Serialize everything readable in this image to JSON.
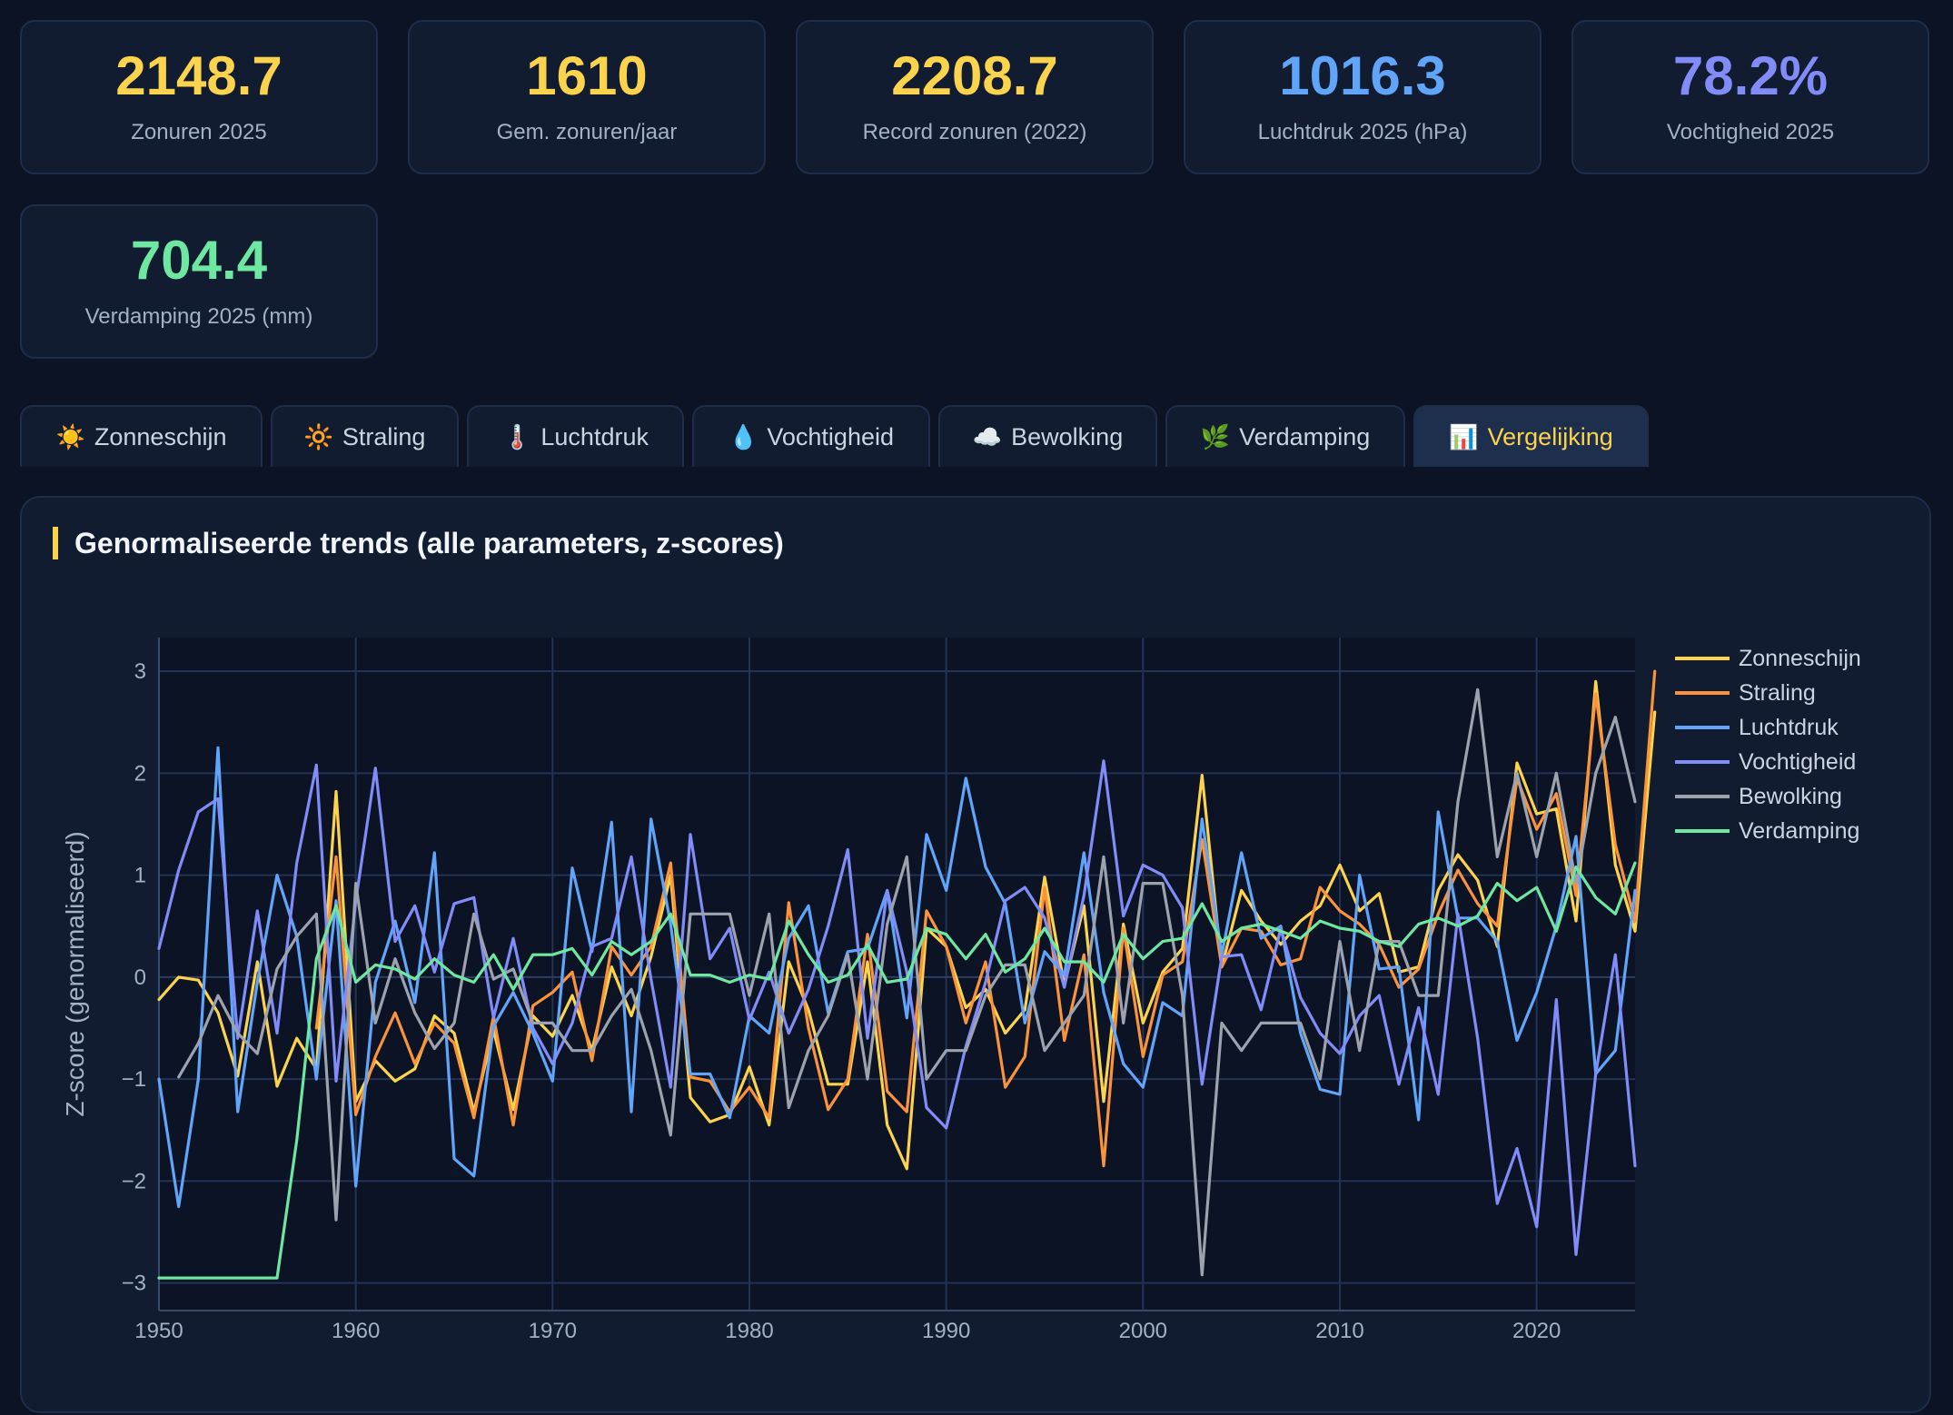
{
  "stats": [
    {
      "value": "2148.7",
      "label": "Zonuren 2025",
      "color": "#fcd34d"
    },
    {
      "value": "1610",
      "label": "Gem. zonuren/jaar",
      "color": "#fcd34d"
    },
    {
      "value": "2208.7",
      "label": "Record zonuren (2022)",
      "color": "#fcd34d"
    },
    {
      "value": "1016.3",
      "label": "Luchtdruk 2025 (hPa)",
      "color": "#60a5fa"
    },
    {
      "value": "78.2%",
      "label": "Vochtigheid 2025",
      "color": "#818cf8"
    },
    {
      "value": "704.4",
      "label": "Verdamping 2025 (mm)",
      "color": "#6ee7a0"
    }
  ],
  "tabs": [
    {
      "icon": "☀️",
      "label": "Zonneschijn",
      "icon_name": "sun-icon"
    },
    {
      "icon": "🔆",
      "label": "Straling",
      "icon_name": "radiation-icon"
    },
    {
      "icon": "🌡️",
      "label": "Luchtdruk",
      "icon_name": "thermometer-icon"
    },
    {
      "icon": "💧",
      "label": "Vochtigheid",
      "icon_name": "droplet-icon"
    },
    {
      "icon": "☁️",
      "label": "Bewolking",
      "icon_name": "cloud-icon"
    },
    {
      "icon": "🌿",
      "label": "Verdamping",
      "icon_name": "leaf-icon"
    },
    {
      "icon": "📊",
      "label": "Vergelijking",
      "icon_name": "bar-chart-icon",
      "active": true
    }
  ],
  "panel": {
    "title": "Genormaliseerde trends (alle parameters, z-scores)"
  },
  "chart_data": {
    "type": "line",
    "title": "",
    "xlabel": "",
    "ylabel": "Z-score (genormaliseerd)",
    "xlim": [
      1950,
      2025
    ],
    "ylim": [
      -3.27,
      3.33
    ],
    "xticks": [
      1950,
      1960,
      1970,
      1980,
      1990,
      2000,
      2010,
      2020
    ],
    "yticks": [
      3,
      2,
      1,
      0,
      -1,
      -2,
      -3
    ],
    "ytick_labels": [
      "3",
      "2",
      "1",
      "0",
      "−1",
      "−2",
      "−3"
    ],
    "grid": true,
    "legend": "right",
    "series": [
      {
        "name": "Zonneschijn",
        "color": "#fcd34d",
        "x0": 1950,
        "values": [
          -0.22,
          0.0,
          -0.03,
          -0.35,
          -0.97,
          0.15,
          -1.07,
          -0.6,
          -0.9,
          1.82,
          -1.22,
          -0.82,
          -1.02,
          -0.9,
          -0.38,
          -0.55,
          -1.32,
          -0.52,
          -1.3,
          -0.38,
          -0.58,
          -0.18,
          -0.72,
          0.1,
          -0.38,
          0.2,
          1.0,
          -1.18,
          -1.42,
          -1.35,
          -0.88,
          -1.45,
          0.15,
          -0.32,
          -1.05,
          -1.05,
          0.15,
          -1.45,
          -1.88,
          0.48,
          0.3,
          -0.3,
          -0.12,
          -0.55,
          -0.32,
          0.98,
          -0.08,
          0.7,
          -1.22,
          0.52,
          -0.45,
          0.05,
          0.28,
          1.98,
          0.1,
          0.85,
          0.55,
          0.32,
          0.55,
          0.7,
          1.1,
          0.65,
          0.82,
          0.05,
          0.1,
          0.85,
          1.2,
          0.95,
          0.3,
          2.1,
          1.6,
          1.65,
          0.55,
          2.9,
          1.1,
          0.45,
          2.6
        ]
      },
      {
        "name": "Straling",
        "color": "#fb923c",
        "x0": 1950,
        "values": [
          null,
          null,
          null,
          null,
          null,
          null,
          null,
          null,
          -0.5,
          1.18,
          -1.35,
          -0.78,
          -0.35,
          -0.85,
          -0.45,
          -0.65,
          -1.38,
          -0.38,
          -1.45,
          -0.28,
          -0.15,
          0.05,
          -0.82,
          0.3,
          0.02,
          0.3,
          1.12,
          -0.98,
          -1.02,
          -1.32,
          -1.08,
          -1.38,
          0.73,
          -0.5,
          -1.3,
          -1.0,
          0.42,
          -1.12,
          -1.32,
          0.65,
          0.3,
          -0.45,
          0.15,
          -1.08,
          -0.78,
          0.88,
          -0.62,
          0.22,
          -1.85,
          0.48,
          -0.78,
          0.02,
          0.15,
          1.35,
          0.1,
          0.48,
          0.45,
          0.12,
          0.18,
          0.88,
          0.65,
          0.52,
          0.32,
          -0.1,
          0.08,
          0.62,
          1.05,
          0.72,
          0.5,
          1.95,
          1.45,
          1.8,
          0.8,
          2.78,
          1.3,
          0.55,
          3.0
        ]
      },
      {
        "name": "Luchtdruk",
        "color": "#60a5fa",
        "x0": 1950,
        "values": [
          -1.0,
          -2.25,
          -1.0,
          2.25,
          -1.32,
          -0.05,
          1.0,
          0.4,
          -1.0,
          0.75,
          -2.05,
          -0.05,
          0.55,
          -0.25,
          1.22,
          -1.78,
          -1.95,
          -0.48,
          -0.15,
          -0.55,
          -1.02,
          1.07,
          0.25,
          1.52,
          -1.32,
          1.55,
          0.52,
          -0.95,
          -0.95,
          -1.38,
          -0.38,
          -0.55,
          0.38,
          0.7,
          -0.35,
          0.25,
          0.28,
          0.85,
          -0.4,
          1.4,
          0.85,
          1.95,
          1.08,
          0.72,
          -0.45,
          0.25,
          0.02,
          1.22,
          -0.15,
          -0.85,
          -1.08,
          -0.25,
          -0.38,
          1.55,
          0.22,
          1.22,
          0.38,
          0.5,
          -0.55,
          -1.1,
          -1.15,
          1.0,
          0.08,
          0.1,
          -1.4,
          1.62,
          0.58,
          0.58,
          0.35,
          -0.62,
          -0.15,
          0.5,
          1.38,
          -0.95,
          -0.72,
          0.85
        ]
      },
      {
        "name": "Vochtigheid",
        "color": "#818cf8",
        "x0": 1950,
        "values": [
          0.28,
          1.05,
          1.62,
          1.75,
          -0.6,
          0.65,
          -0.55,
          1.12,
          2.08,
          -1.02,
          0.75,
          2.05,
          0.35,
          0.7,
          0.05,
          0.72,
          0.78,
          -0.4,
          0.38,
          -0.5,
          -0.85,
          -0.45,
          0.3,
          0.38,
          1.18,
          -0.02,
          -1.08,
          1.4,
          0.18,
          0.48,
          -0.42,
          0.05,
          -0.55,
          -0.12,
          0.5,
          1.25,
          -0.6,
          0.85,
          0.05,
          -1.28,
          -1.48,
          -0.68,
          -0.05,
          0.75,
          0.88,
          0.58,
          -0.1,
          0.8,
          2.12,
          0.6,
          1.1,
          1.0,
          0.68,
          -1.05,
          0.2,
          0.22,
          -0.32,
          0.48,
          -0.2,
          -0.55,
          -0.75,
          -0.38,
          -0.18,
          -1.05,
          -0.3,
          -1.15,
          0.62,
          -0.6,
          -2.22,
          -1.68,
          -2.45,
          -0.22,
          -2.72,
          -0.95,
          0.22,
          -1.85
        ]
      },
      {
        "name": "Bewolking",
        "color": "#9ca3af",
        "x0": 1950,
        "values": [
          null,
          -0.98,
          -0.65,
          -0.18,
          -0.55,
          -0.75,
          0.08,
          0.4,
          0.62,
          -2.38,
          0.92,
          -0.45,
          0.18,
          -0.35,
          -0.7,
          -0.45,
          0.62,
          -0.02,
          0.08,
          -0.45,
          -0.45,
          -0.72,
          -0.72,
          -0.38,
          -0.12,
          -0.72,
          -1.55,
          0.62,
          0.62,
          0.62,
          -0.18,
          0.62,
          -1.28,
          -0.72,
          -0.38,
          0.22,
          -1.0,
          0.52,
          1.18,
          -1.0,
          -0.72,
          -0.72,
          -0.18,
          0.12,
          0.12,
          -0.72,
          -0.45,
          -0.18,
          1.18,
          -0.45,
          0.92,
          0.92,
          -0.18,
          -2.92,
          -0.45,
          -0.72,
          -0.45,
          -0.45,
          -0.45,
          -1.0,
          0.35,
          -0.72,
          0.35,
          0.35,
          -0.18,
          -0.18,
          1.72,
          2.82,
          1.18,
          2.0,
          1.18,
          2.0,
          0.92,
          2.0,
          2.55,
          1.72
        ]
      },
      {
        "name": "Verdamping",
        "color": "#6ee7a0",
        "x0": 1950,
        "values": [
          -2.95,
          -2.95,
          -2.95,
          -2.95,
          -2.95,
          -2.95,
          -2.95,
          -1.6,
          0.18,
          0.7,
          -0.05,
          0.12,
          0.08,
          -0.02,
          0.18,
          0.02,
          -0.05,
          0.22,
          -0.12,
          0.22,
          0.22,
          0.28,
          0.02,
          0.35,
          0.22,
          0.35,
          0.62,
          0.02,
          0.02,
          -0.05,
          0.02,
          -0.02,
          0.55,
          0.22,
          -0.05,
          0.02,
          0.32,
          -0.05,
          -0.02,
          0.48,
          0.42,
          0.18,
          0.42,
          0.05,
          0.18,
          0.48,
          0.15,
          0.15,
          -0.05,
          0.42,
          0.18,
          0.35,
          0.38,
          0.72,
          0.35,
          0.48,
          0.52,
          0.45,
          0.38,
          0.55,
          0.48,
          0.45,
          0.35,
          0.3,
          0.52,
          0.58,
          0.5,
          0.6,
          0.92,
          0.75,
          0.88,
          0.45,
          1.08,
          0.78,
          0.62,
          1.12
        ]
      }
    ]
  }
}
